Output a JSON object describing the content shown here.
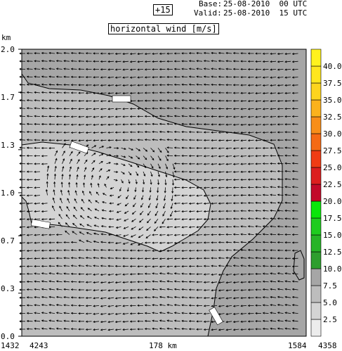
{
  "header": {
    "forecast_hour": "+15",
    "base_label": "Base:",
    "base_value": "25-08-2010  00 UTC",
    "valid_label": "Valid:",
    "valid_value": "25-08-2010  15 UTC",
    "field_title": "horizontal wind [m/s]"
  },
  "chart_data": {
    "type": "heatmap",
    "title": "horizontal wind [m/s]",
    "ylabel": "km",
    "y_ticks": [
      "0.0",
      "0.3",
      "0.7",
      "1.0",
      "1.3",
      "1.7",
      "2.0"
    ],
    "ylim": [
      0,
      2.0
    ],
    "x_labels": {
      "left_outer": "1432",
      "left_inner": "4243",
      "center": "178 km",
      "right_inner": "1584",
      "right_outer": "4358"
    },
    "colorbar": {
      "levels": [
        "2.5",
        "5.0",
        "7.5",
        "10.0",
        "12.5",
        "15.0",
        "17.5",
        "20.0",
        "22.5",
        "25.0",
        "27.5",
        "30.0",
        "32.5",
        "35.0",
        "37.5",
        "40.0"
      ],
      "colors": [
        "#ececec",
        "#d4d4d4",
        "#bdbdbd",
        "#a6a6a6",
        "#2e9e2e",
        "#27b427",
        "#1fcc1f",
        "#0ae60a",
        "#c20a2a",
        "#dc1f1f",
        "#f03c14",
        "#f56a14",
        "#f88e18",
        "#fbb21c",
        "#fdd41e",
        "#ffe61e",
        "#fff21e"
      ]
    },
    "regions": [
      {
        "speed_band": "0-2.5",
        "color": "#ececec",
        "description_level": "lowest"
      },
      {
        "speed_band": "2.5-5.0",
        "color": "#d4d4d4"
      },
      {
        "speed_band": "5.0-7.5",
        "color": "#bdbdbd"
      },
      {
        "speed_band": "7.5-10.0",
        "color": "#a6a6a6"
      }
    ],
    "grid": false,
    "vectors": "wind arrows"
  }
}
